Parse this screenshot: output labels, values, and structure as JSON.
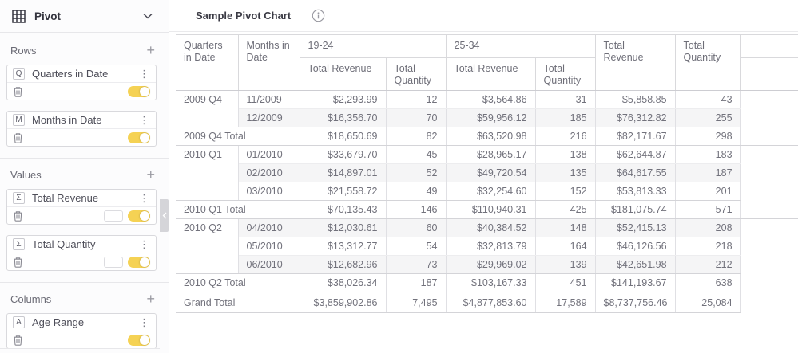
{
  "sidebar": {
    "title": "Pivot",
    "sections": [
      {
        "label": "Rows",
        "fields": [
          {
            "badge": "Q",
            "label": "Quarters in Date",
            "pill": false,
            "toggle_on": true
          },
          {
            "badge": "M",
            "label": "Months in Date",
            "pill": false,
            "toggle_on": true
          }
        ]
      },
      {
        "label": "Values",
        "fields": [
          {
            "badge": "Σ",
            "label": "Total Revenue",
            "pill": true,
            "toggle_on": true
          },
          {
            "badge": "Σ",
            "label": "Total Quantity",
            "pill": true,
            "toggle_on": true
          }
        ]
      },
      {
        "label": "Columns",
        "fields": [
          {
            "badge": "A",
            "label": "Age Range",
            "pill": false,
            "toggle_on": true
          }
        ]
      }
    ]
  },
  "main": {
    "title": "Sample Pivot Chart"
  },
  "colors": {
    "toggle_on": "#f5d254"
  },
  "chart_data": {
    "type": "table",
    "title": "Sample Pivot Chart",
    "row_headers": [
      "Quarters in Date",
      "Months in Date"
    ],
    "column_groups": [
      {
        "label": "19-24",
        "columns": [
          "Total Revenue",
          "Total Quantity"
        ]
      },
      {
        "label": "25-34",
        "columns": [
          "Total Revenue",
          "Total Quantity"
        ]
      },
      {
        "label": "Total Revenue"
      },
      {
        "label": "Total Quantity"
      }
    ],
    "rows": [
      {
        "type": "month",
        "quarter": "2009 Q4",
        "month": "11/2009",
        "values": [
          "$2,293.99",
          "12",
          "$3,564.86",
          "31",
          "$5,858.85",
          "43"
        ],
        "striped": false,
        "group_end": false
      },
      {
        "type": "month",
        "quarter": "",
        "month": "12/2009",
        "values": [
          "$16,356.70",
          "70",
          "$59,956.12",
          "185",
          "$76,312.82",
          "255"
        ],
        "striped": true,
        "group_end": true
      },
      {
        "type": "total",
        "label": "2009 Q4 Total",
        "values": [
          "$18,650.69",
          "82",
          "$63,520.98",
          "216",
          "$82,171.67",
          "298"
        ],
        "trail": true
      },
      {
        "type": "month",
        "quarter": "2010 Q1",
        "month": "01/2010",
        "values": [
          "$33,679.70",
          "45",
          "$28,965.17",
          "138",
          "$62,644.87",
          "183"
        ],
        "striped": false,
        "group_end": false
      },
      {
        "type": "month",
        "quarter": "",
        "month": "02/2010",
        "values": [
          "$14,897.01",
          "52",
          "$49,720.54",
          "135",
          "$64,617.55",
          "187"
        ],
        "striped": true,
        "group_end": false
      },
      {
        "type": "month",
        "quarter": "",
        "month": "03/2010",
        "values": [
          "$21,558.72",
          "49",
          "$32,254.60",
          "152",
          "$53,813.33",
          "201"
        ],
        "striped": false,
        "group_end": true
      },
      {
        "type": "total",
        "label": "2010 Q1 Total",
        "values": [
          "$70,135.43",
          "146",
          "$110,940.31",
          "425",
          "$181,075.74",
          "571"
        ],
        "trail": true
      },
      {
        "type": "month",
        "quarter": "2010 Q2",
        "month": "04/2010",
        "values": [
          "$12,030.61",
          "60",
          "$40,384.52",
          "148",
          "$52,415.13",
          "208"
        ],
        "striped": true,
        "group_end": false
      },
      {
        "type": "month",
        "quarter": "",
        "month": "05/2010",
        "values": [
          "$13,312.77",
          "54",
          "$32,813.79",
          "164",
          "$46,126.56",
          "218"
        ],
        "striped": false,
        "group_end": false
      },
      {
        "type": "month",
        "quarter": "",
        "month": "06/2010",
        "values": [
          "$12,682.96",
          "73",
          "$29,969.02",
          "139",
          "$42,651.98",
          "212"
        ],
        "striped": true,
        "group_end": true
      },
      {
        "type": "total",
        "label": "2010 Q2 Total",
        "values": [
          "$38,026.34",
          "187",
          "$103,167.33",
          "451",
          "$141,193.67",
          "638"
        ],
        "trail": false
      },
      {
        "type": "grand",
        "label": "Grand Total",
        "values": [
          "$3,859,902.86",
          "7,495",
          "$4,877,853.60",
          "17,589",
          "$8,737,756.46",
          "25,084"
        ],
        "trail": false
      }
    ]
  }
}
